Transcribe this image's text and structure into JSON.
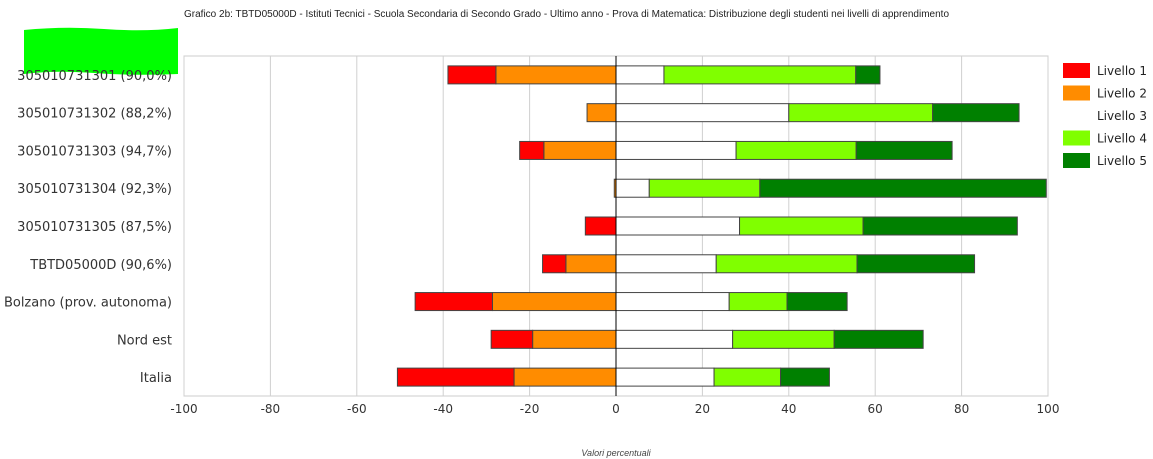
{
  "chart_data": {
    "type": "bar",
    "orientation": "horizontal",
    "stacked": true,
    "diverging": true,
    "title": "Grafico 2b: TBTD05000D - Istituti Tecnici - Scuola Secondaria di Secondo Grado - Ultimo anno - Prova di Matematica: Distribuzione degli studenti nei livelli di apprendimento",
    "xlabel": "Valori percentuali",
    "xlim": [
      -100,
      100
    ],
    "xticks": [
      -100,
      -80,
      -60,
      -40,
      -20,
      0,
      20,
      40,
      60,
      80,
      100
    ],
    "grid": true,
    "legend_position": "right",
    "categories": [
      "305010731301 (90,0%)",
      "305010731302 (88,2%)",
      "305010731303 (94,7%)",
      "305010731304 (92,3%)",
      "305010731305 (87,5%)",
      "TBTD05000D (90,6%)",
      "Bolzano (prov. autonoma)",
      "Nord est",
      "Italia"
    ],
    "series": [
      {
        "name": "Livello 1",
        "color": "#ff0000",
        "side": "negative",
        "values": [
          11.1,
          0,
          5.6,
          0,
          7.1,
          5.4,
          17.9,
          9.6,
          27.0
        ]
      },
      {
        "name": "Livello 2",
        "color": "#ff8c00",
        "side": "negative",
        "values": [
          27.8,
          6.7,
          16.7,
          0.4,
          0,
          11.6,
          28.6,
          19.3,
          23.6
        ]
      },
      {
        "name": "Livello 3",
        "color": "#ffffff",
        "side": "positive",
        "values": [
          11.1,
          40.0,
          27.8,
          7.7,
          28.6,
          23.2,
          26.2,
          27.0,
          22.7
        ]
      },
      {
        "name": "Livello 4",
        "color": "#80ff00",
        "side": "positive",
        "values": [
          44.4,
          33.3,
          27.8,
          25.6,
          28.6,
          32.6,
          13.4,
          23.5,
          15.4
        ]
      },
      {
        "name": "Livello 5",
        "color": "#008000",
        "side": "positive",
        "values": [
          5.6,
          20.0,
          22.2,
          66.3,
          35.7,
          27.2,
          13.9,
          20.6,
          11.3
        ]
      }
    ]
  }
}
